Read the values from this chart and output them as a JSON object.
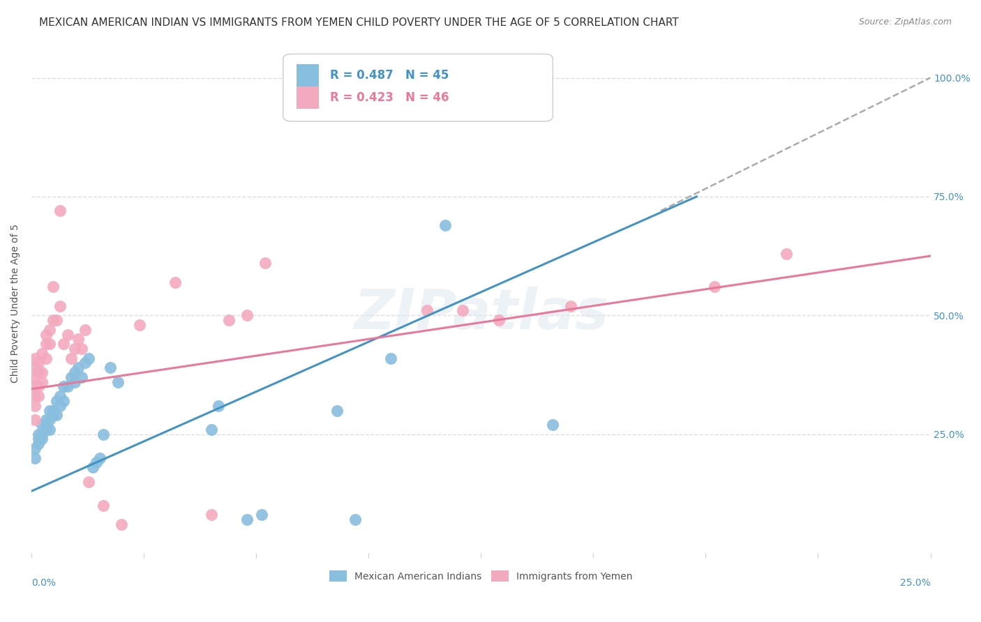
{
  "title": "MEXICAN AMERICAN INDIAN VS IMMIGRANTS FROM YEMEN CHILD POVERTY UNDER THE AGE OF 5 CORRELATION CHART",
  "source": "Source: ZipAtlas.com",
  "ylabel": "Child Poverty Under the Age of 5",
  "yaxis_labels": [
    "25.0%",
    "50.0%",
    "75.0%",
    "100.0%"
  ],
  "legend_blue": "R = 0.487   N = 45",
  "legend_pink": "R = 0.423   N = 46",
  "legend_label_blue": "Mexican American Indians",
  "legend_label_pink": "Immigrants from Yemen",
  "blue_color": "#88bede",
  "pink_color": "#f4aabe",
  "line_blue": "#4393c3",
  "line_pink": "#e8799a",
  "tick_color": "#4393c3",
  "blue_scatter": [
    [
      0.001,
      0.2
    ],
    [
      0.001,
      0.22
    ],
    [
      0.002,
      0.23
    ],
    [
      0.002,
      0.24
    ],
    [
      0.002,
      0.25
    ],
    [
      0.003,
      0.24
    ],
    [
      0.003,
      0.25
    ],
    [
      0.003,
      0.27
    ],
    [
      0.004,
      0.26
    ],
    [
      0.004,
      0.27
    ],
    [
      0.004,
      0.28
    ],
    [
      0.005,
      0.28
    ],
    [
      0.005,
      0.26
    ],
    [
      0.005,
      0.3
    ],
    [
      0.006,
      0.3
    ],
    [
      0.006,
      0.29
    ],
    [
      0.007,
      0.32
    ],
    [
      0.007,
      0.29
    ],
    [
      0.008,
      0.31
    ],
    [
      0.008,
      0.33
    ],
    [
      0.009,
      0.32
    ],
    [
      0.009,
      0.35
    ],
    [
      0.01,
      0.35
    ],
    [
      0.011,
      0.37
    ],
    [
      0.012,
      0.36
    ],
    [
      0.012,
      0.38
    ],
    [
      0.013,
      0.39
    ],
    [
      0.014,
      0.37
    ],
    [
      0.015,
      0.4
    ],
    [
      0.016,
      0.41
    ],
    [
      0.017,
      0.18
    ],
    [
      0.018,
      0.19
    ],
    [
      0.019,
      0.2
    ],
    [
      0.02,
      0.25
    ],
    [
      0.022,
      0.39
    ],
    [
      0.024,
      0.36
    ],
    [
      0.05,
      0.26
    ],
    [
      0.052,
      0.31
    ],
    [
      0.06,
      0.07
    ],
    [
      0.064,
      0.08
    ],
    [
      0.085,
      0.3
    ],
    [
      0.09,
      0.07
    ],
    [
      0.1,
      0.41
    ],
    [
      0.115,
      0.69
    ],
    [
      0.145,
      0.27
    ]
  ],
  "pink_scatter": [
    [
      0.001,
      0.28
    ],
    [
      0.001,
      0.31
    ],
    [
      0.001,
      0.33
    ],
    [
      0.001,
      0.35
    ],
    [
      0.001,
      0.37
    ],
    [
      0.001,
      0.39
    ],
    [
      0.001,
      0.41
    ],
    [
      0.002,
      0.33
    ],
    [
      0.002,
      0.35
    ],
    [
      0.002,
      0.38
    ],
    [
      0.002,
      0.4
    ],
    [
      0.003,
      0.36
    ],
    [
      0.003,
      0.38
    ],
    [
      0.003,
      0.42
    ],
    [
      0.004,
      0.41
    ],
    [
      0.004,
      0.44
    ],
    [
      0.004,
      0.46
    ],
    [
      0.005,
      0.44
    ],
    [
      0.005,
      0.47
    ],
    [
      0.006,
      0.49
    ],
    [
      0.006,
      0.56
    ],
    [
      0.007,
      0.49
    ],
    [
      0.008,
      0.52
    ],
    [
      0.008,
      0.72
    ],
    [
      0.009,
      0.44
    ],
    [
      0.01,
      0.46
    ],
    [
      0.011,
      0.41
    ],
    [
      0.012,
      0.43
    ],
    [
      0.013,
      0.45
    ],
    [
      0.014,
      0.43
    ],
    [
      0.015,
      0.47
    ],
    [
      0.016,
      0.15
    ],
    [
      0.02,
      0.1
    ],
    [
      0.025,
      0.06
    ],
    [
      0.03,
      0.48
    ],
    [
      0.04,
      0.57
    ],
    [
      0.05,
      0.08
    ],
    [
      0.055,
      0.49
    ],
    [
      0.06,
      0.5
    ],
    [
      0.065,
      0.61
    ],
    [
      0.11,
      0.51
    ],
    [
      0.12,
      0.51
    ],
    [
      0.13,
      0.49
    ],
    [
      0.15,
      0.52
    ],
    [
      0.19,
      0.56
    ],
    [
      0.21,
      0.63
    ]
  ],
  "xlim": [
    0,
    0.25
  ],
  "ylim": [
    0,
    1.05
  ],
  "yticks": [
    0.25,
    0.5,
    0.75,
    1.0
  ],
  "xtick_positions": [
    0.0,
    0.03125,
    0.0625,
    0.09375,
    0.125,
    0.15625,
    0.1875,
    0.21875,
    0.25
  ],
  "blue_line_x": [
    0.0,
    0.185
  ],
  "blue_line_y": [
    0.13,
    0.75
  ],
  "pink_line_x": [
    0.0,
    0.25
  ],
  "pink_line_y": [
    0.345,
    0.625
  ],
  "dashed_line_x": [
    0.175,
    0.25
  ],
  "dashed_line_y": [
    0.72,
    1.0
  ],
  "bg_color": "#ffffff",
  "grid_color": "#dddddd",
  "title_fontsize": 11,
  "axis_label_fontsize": 10,
  "tick_fontsize": 10
}
